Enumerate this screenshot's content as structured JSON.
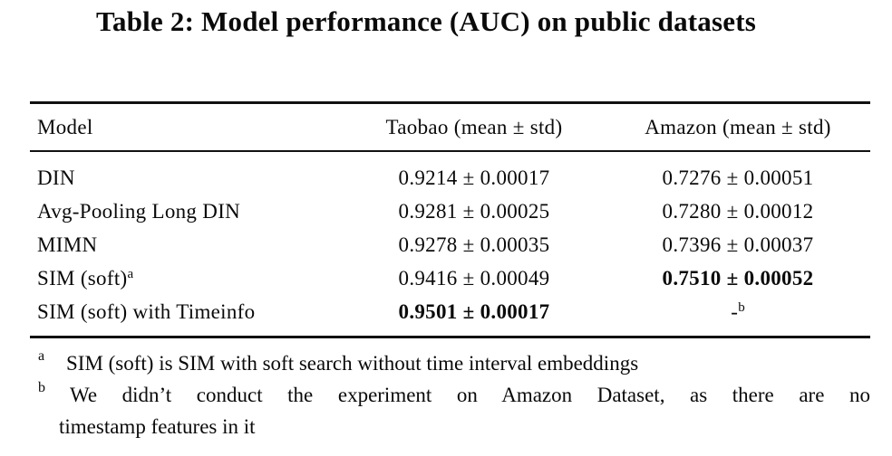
{
  "title": "Table 2: Model performance (AUC) on public datasets",
  "table": {
    "headers": {
      "model": "Model",
      "taobao": "Taobao (mean ± std)",
      "amazon": "Amazon (mean ± std)"
    },
    "rows": [
      {
        "model": "DIN",
        "taobao": "0.9214 ± 0.00017",
        "amazon": "0.7276 ± 0.00051"
      },
      {
        "model": "Avg-Pooling Long DIN",
        "taobao": "0.9281 ± 0.00025",
        "amazon": "0.7280 ± 0.00012"
      },
      {
        "model": "MIMN",
        "taobao": "0.9278 ± 0.00035",
        "amazon": "0.7396 ± 0.00037"
      },
      {
        "model": "SIM (soft)",
        "model_marker": "a",
        "taobao": "0.9416 ± 0.00049",
        "amazon": "0.7510 ± 0.00052"
      },
      {
        "model": "SIM (soft) with Timeinfo",
        "taobao": "0.9501 ± 0.00017",
        "amazon": "-",
        "amazon_marker": "b"
      }
    ]
  },
  "footnotes": [
    {
      "marker": "a",
      "lines": [
        "SIM (soft) is SIM with soft search without time interval embeddings"
      ]
    },
    {
      "marker": "b",
      "lines": [
        "We didn’t conduct the experiment on Amazon Dataset, as there are no",
        "timestamp features in it"
      ]
    }
  ],
  "colors": {
    "text": "#0a0a0a",
    "rule": "#111111",
    "background": "#ffffff"
  }
}
